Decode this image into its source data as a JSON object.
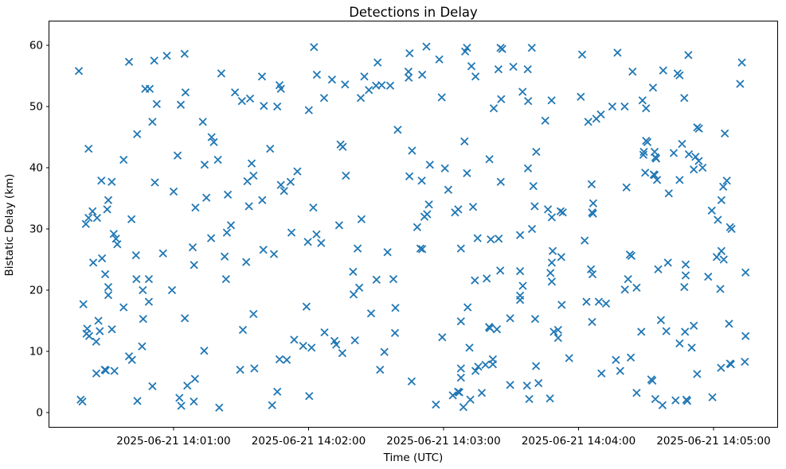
{
  "chart_data": {
    "type": "scatter",
    "title": "Detections in Delay",
    "xlabel": "Time (UTC)",
    "ylabel": "Bistatic Delay (km)",
    "marker": "x",
    "marker_color": "#1f77b4",
    "grid": false,
    "legend": null,
    "x_unit": "seconds after 2025-06-21 14:00:00 UTC",
    "xlim": [
      4.8,
      328.3
    ],
    "ylim": [
      -2.34,
      63.9
    ],
    "x_ticks": [
      60,
      120,
      180,
      240,
      300
    ],
    "x_tick_labels": [
      "2025-06-21 14:01:00",
      "2025-06-21 14:02:00",
      "2025-06-21 14:03:00",
      "2025-06-21 14:04:00",
      "2025-06-21 14:05:00"
    ],
    "y_ticks": [
      0,
      10,
      20,
      30,
      40,
      50,
      60
    ],
    "y_tick_labels": [
      "0",
      "10",
      "20",
      "30",
      "40",
      "50",
      "60"
    ],
    "points": [
      [
        17.9,
        55.8
      ],
      [
        40.2,
        57.3
      ],
      [
        51.4,
        57.5
      ],
      [
        57,
        58.3
      ],
      [
        64.9,
        58.6
      ],
      [
        81.2,
        55.4
      ],
      [
        47.4,
        52.9
      ],
      [
        49.4,
        52.9
      ],
      [
        65.3,
        52.3
      ],
      [
        52.5,
        50.4
      ],
      [
        63.2,
        50.3
      ],
      [
        50.6,
        47.5
      ],
      [
        73,
        47.5
      ],
      [
        43.8,
        45.5
      ],
      [
        76.9,
        45
      ],
      [
        77.9,
        44.2
      ],
      [
        22.2,
        43.1
      ],
      [
        61.8,
        42
      ],
      [
        122.4,
        59.7
      ],
      [
        164.9,
        58.7
      ],
      [
        150.7,
        57.2
      ],
      [
        164.4,
        55.7
      ],
      [
        164.5,
        54.7
      ],
      [
        99.3,
        54.9
      ],
      [
        123.7,
        55.2
      ],
      [
        130.4,
        54.4
      ],
      [
        136.2,
        53.6
      ],
      [
        144.8,
        54.9
      ],
      [
        107.1,
        53.5
      ],
      [
        107.7,
        52.9
      ],
      [
        87.3,
        52.3
      ],
      [
        90.4,
        50.9
      ],
      [
        94,
        51.3
      ],
      [
        100.1,
        50.1
      ],
      [
        106.1,
        50
      ],
      [
        126.9,
        51.4
      ],
      [
        143.2,
        51.4
      ],
      [
        146.8,
        52.7
      ],
      [
        150,
        53.4
      ],
      [
        152.5,
        53.5
      ],
      [
        156.3,
        53.4
      ],
      [
        120.1,
        49.4
      ],
      [
        159.6,
        46.2
      ],
      [
        102.9,
        43.1
      ],
      [
        134.2,
        43.8
      ],
      [
        135.2,
        43.4
      ],
      [
        172.4,
        59.8
      ],
      [
        178.1,
        57.7
      ],
      [
        190.4,
        59.6
      ],
      [
        189.6,
        59
      ],
      [
        205.3,
        59.6
      ],
      [
        206.1,
        59.4
      ],
      [
        219.2,
        59.6
      ],
      [
        241.6,
        58.5
      ],
      [
        192.4,
        56.6
      ],
      [
        204.4,
        56.1
      ],
      [
        211,
        56.5
      ],
      [
        217.4,
        56.1
      ],
      [
        170.5,
        55.2
      ],
      [
        194.2,
        54.9
      ],
      [
        179.2,
        51.5
      ],
      [
        215.1,
        52.4
      ],
      [
        205.6,
        51.2
      ],
      [
        202.3,
        49.7
      ],
      [
        217.6,
        50.9
      ],
      [
        228,
        51
      ],
      [
        241,
        51.6
      ],
      [
        225.2,
        47.7
      ],
      [
        244.3,
        47.5
      ],
      [
        189.3,
        44.3
      ],
      [
        166,
        42.8
      ],
      [
        221.2,
        42.6
      ],
      [
        200.4,
        41.4
      ],
      [
        257.3,
        58.8
      ],
      [
        288.8,
        58.4
      ],
      [
        312.6,
        57.2
      ],
      [
        264,
        55.7
      ],
      [
        277.6,
        55.9
      ],
      [
        284,
        55.4
      ],
      [
        284.9,
        55.1
      ],
      [
        311.8,
        53.7
      ],
      [
        273.1,
        53.1
      ],
      [
        287,
        51.4
      ],
      [
        268.4,
        51
      ],
      [
        270,
        49.7
      ],
      [
        255,
        50
      ],
      [
        260.5,
        50
      ],
      [
        249.9,
        48.7
      ],
      [
        247.9,
        48
      ],
      [
        292.7,
        46.6
      ],
      [
        293.5,
        46.4
      ],
      [
        305,
        45.6
      ],
      [
        270,
        44.4
      ],
      [
        270.6,
        44.2
      ],
      [
        286,
        43.9
      ],
      [
        269,
        42.6
      ],
      [
        273.8,
        42.6
      ],
      [
        282.3,
        42.4
      ],
      [
        289,
        42.2
      ],
      [
        292,
        41.8
      ],
      [
        293.4,
        41.1
      ],
      [
        37.8,
        41.3
      ],
      [
        73.8,
        40.5
      ],
      [
        79.7,
        41.3
      ],
      [
        27.9,
        37.9
      ],
      [
        32.5,
        37.7
      ],
      [
        51.7,
        37.6
      ],
      [
        60,
        36.1
      ],
      [
        74.6,
        35.1
      ],
      [
        84.1,
        35.6
      ],
      [
        69.7,
        33.5
      ],
      [
        31,
        34.7
      ],
      [
        30.5,
        33.2
      ],
      [
        24,
        32.9
      ],
      [
        26,
        31.8
      ],
      [
        22.2,
        31.8
      ],
      [
        21,
        30.8
      ],
      [
        41.3,
        31.6
      ],
      [
        33.4,
        29.2
      ],
      [
        34.4,
        28.4
      ],
      [
        35,
        27.5
      ],
      [
        83.7,
        29.4
      ],
      [
        85.5,
        30.6
      ],
      [
        76.7,
        28.5
      ],
      [
        68.5,
        27
      ],
      [
        69.1,
        24.1
      ],
      [
        43.3,
        25.7
      ],
      [
        55.3,
        26
      ],
      [
        24.3,
        24.5
      ],
      [
        28.2,
        25.2
      ],
      [
        82.7,
        25.5
      ],
      [
        83.3,
        21.8
      ],
      [
        29.6,
        22.6
      ],
      [
        31,
        20.5
      ],
      [
        43.5,
        21.8
      ],
      [
        49,
        21.8
      ],
      [
        94.7,
        40.7
      ],
      [
        95.5,
        38.7
      ],
      [
        92.8,
        37.8
      ],
      [
        115,
        39.4
      ],
      [
        136.6,
        38.7
      ],
      [
        164.8,
        38.6
      ],
      [
        107.7,
        37.2
      ],
      [
        109.1,
        36.2
      ],
      [
        112,
        37.7
      ],
      [
        99.4,
        34.7
      ],
      [
        93.5,
        33.7
      ],
      [
        122.1,
        33.5
      ],
      [
        112.4,
        29.4
      ],
      [
        119.7,
        27.9
      ],
      [
        123.5,
        29.1
      ],
      [
        125.6,
        27.7
      ],
      [
        133.6,
        30.6
      ],
      [
        143.5,
        31.6
      ],
      [
        99.9,
        26.6
      ],
      [
        104.6,
        25.9
      ],
      [
        92.3,
        24.6
      ],
      [
        141.8,
        26.8
      ],
      [
        155.1,
        26.2
      ],
      [
        139.8,
        23
      ],
      [
        150.2,
        21.7
      ],
      [
        157.7,
        21.8
      ],
      [
        142.5,
        20.4
      ],
      [
        173.9,
        40.5
      ],
      [
        180.6,
        39.9
      ],
      [
        190.4,
        39.1
      ],
      [
        217.5,
        39.9
      ],
      [
        170.3,
        37.9
      ],
      [
        205.4,
        37.7
      ],
      [
        219.9,
        37
      ],
      [
        182.1,
        36.4
      ],
      [
        173.5,
        34
      ],
      [
        185.1,
        32.7
      ],
      [
        186.5,
        33.2
      ],
      [
        193.1,
        33.6
      ],
      [
        171.5,
        32
      ],
      [
        172.7,
        32.4
      ],
      [
        168.3,
        30.3
      ],
      [
        220.5,
        33.7
      ],
      [
        226.4,
        33.2
      ],
      [
        228.1,
        31.9
      ],
      [
        232,
        32.9
      ],
      [
        233,
        32.7
      ],
      [
        219.3,
        30
      ],
      [
        214,
        29
      ],
      [
        195.1,
        28.5
      ],
      [
        201,
        28.3
      ],
      [
        204.5,
        28.4
      ],
      [
        242.7,
        28.1
      ],
      [
        169.7,
        26.8
      ],
      [
        170.5,
        26.7
      ],
      [
        187.7,
        26.8
      ],
      [
        228.5,
        26.4
      ],
      [
        232.3,
        25.4
      ],
      [
        228.1,
        24.5
      ],
      [
        205.2,
        23.2
      ],
      [
        214,
        23.1
      ],
      [
        193.9,
        21.6
      ],
      [
        199.2,
        21.9
      ],
      [
        215.2,
        20.7
      ],
      [
        227.5,
        22.8
      ],
      [
        228.1,
        21.4
      ],
      [
        245.5,
        23.4
      ],
      [
        246.2,
        22.6
      ],
      [
        245.8,
        37.3
      ],
      [
        268.8,
        42.1
      ],
      [
        274.1,
        41.7
      ],
      [
        274.5,
        41.5
      ],
      [
        291.2,
        39.7
      ],
      [
        295.1,
        40
      ],
      [
        269.6,
        39.2
      ],
      [
        273.4,
        38.9
      ],
      [
        273.8,
        38.8
      ],
      [
        274.9,
        38
      ],
      [
        284.9,
        38
      ],
      [
        261.3,
        36.8
      ],
      [
        280.1,
        35.8
      ],
      [
        305.9,
        37.9
      ],
      [
        304.3,
        36.9
      ],
      [
        303.5,
        34.7
      ],
      [
        246.5,
        34.2
      ],
      [
        246,
        32.7
      ],
      [
        246.4,
        32.5
      ],
      [
        299.2,
        33
      ],
      [
        301.9,
        31.5
      ],
      [
        307.3,
        30.3
      ],
      [
        308,
        30
      ],
      [
        262.8,
        25.8
      ],
      [
        263.5,
        25.6
      ],
      [
        303.5,
        26.4
      ],
      [
        301.4,
        25.4
      ],
      [
        304.5,
        25
      ],
      [
        279.7,
        24.5
      ],
      [
        275.4,
        23.4
      ],
      [
        287.6,
        24.2
      ],
      [
        287.6,
        22.4
      ],
      [
        297.6,
        22.2
      ],
      [
        314.2,
        22.9
      ],
      [
        262,
        21.8
      ],
      [
        31,
        19.2
      ],
      [
        46.3,
        20
      ],
      [
        59.3,
        20
      ],
      [
        49,
        18.1
      ],
      [
        19.9,
        17.7
      ],
      [
        37.8,
        17.2
      ],
      [
        26.6,
        15
      ],
      [
        46.5,
        15.3
      ],
      [
        65,
        15.4
      ],
      [
        21.6,
        13.7
      ],
      [
        27.2,
        13.3
      ],
      [
        32.6,
        13.6
      ],
      [
        21.3,
        12.9
      ],
      [
        22.5,
        12.5
      ],
      [
        25.6,
        11.6
      ],
      [
        46,
        10.8
      ],
      [
        40.2,
        9.2
      ],
      [
        41.5,
        8.6
      ],
      [
        73.6,
        10.1
      ],
      [
        25.7,
        6.4
      ],
      [
        29.4,
        7
      ],
      [
        29.9,
        6.9
      ],
      [
        33.7,
        6.8
      ],
      [
        50.6,
        4.3
      ],
      [
        69.5,
        5.5
      ],
      [
        66.1,
        4.4
      ],
      [
        18.7,
        2.1
      ],
      [
        19.5,
        1.8
      ],
      [
        43.9,
        1.9
      ],
      [
        62.6,
        2.4
      ],
      [
        63.4,
        1.1
      ],
      [
        69,
        1.8
      ],
      [
        80.3,
        0.8
      ],
      [
        140,
        19.3
      ],
      [
        119.1,
        17.3
      ],
      [
        95.5,
        16.1
      ],
      [
        147.8,
        16.2
      ],
      [
        158.6,
        17.1
      ],
      [
        90.8,
        13.5
      ],
      [
        127.1,
        13.1
      ],
      [
        158.4,
        13
      ],
      [
        113.6,
        11.9
      ],
      [
        117.6,
        10.9
      ],
      [
        121.3,
        10.6
      ],
      [
        131.5,
        11.7
      ],
      [
        132.3,
        11.1
      ],
      [
        135,
        9.7
      ],
      [
        140.6,
        11.8
      ],
      [
        153.7,
        9.9
      ],
      [
        107.1,
        8.7
      ],
      [
        110.3,
        8.6
      ],
      [
        89.6,
        7
      ],
      [
        95.9,
        7.2
      ],
      [
        151.8,
        7
      ],
      [
        106.1,
        3.4
      ],
      [
        120.3,
        2.7
      ],
      [
        103.8,
        1.2
      ],
      [
        214,
        19.1
      ],
      [
        214,
        18.4
      ],
      [
        232.5,
        17.6
      ],
      [
        243.5,
        18.1
      ],
      [
        190.7,
        17.2
      ],
      [
        187.7,
        14.9
      ],
      [
        209.6,
        15.4
      ],
      [
        220.7,
        15.3
      ],
      [
        200.2,
        14
      ],
      [
        200.6,
        13.8
      ],
      [
        203.7,
        13.6
      ],
      [
        179.4,
        12.3
      ],
      [
        229,
        13.2
      ],
      [
        230.9,
        13.5
      ],
      [
        230.9,
        12.2
      ],
      [
        191.5,
        10.6
      ],
      [
        201.9,
        8.7
      ],
      [
        201.9,
        7.9
      ],
      [
        195.4,
        7.5
      ],
      [
        198.6,
        7.8
      ],
      [
        194.2,
        6.8
      ],
      [
        187.7,
        7.2
      ],
      [
        187.7,
        5.7
      ],
      [
        221.1,
        7.6
      ],
      [
        235.8,
        8.9
      ],
      [
        165.8,
        5.1
      ],
      [
        209.6,
        4.5
      ],
      [
        217.1,
        4.4
      ],
      [
        222.2,
        4.8
      ],
      [
        186.4,
        3.4
      ],
      [
        187,
        3.3
      ],
      [
        184.1,
        2.8
      ],
      [
        197,
        3.2
      ],
      [
        191.9,
        2.1
      ],
      [
        188.8,
        0.9
      ],
      [
        176.6,
        1.3
      ],
      [
        218.1,
        2.2
      ],
      [
        227.3,
        2.3
      ],
      [
        260.6,
        20.1
      ],
      [
        265.8,
        20.4
      ],
      [
        287,
        20.5
      ],
      [
        303,
        20.2
      ],
      [
        249,
        18.1
      ],
      [
        252.2,
        17.8
      ],
      [
        246,
        14.8
      ],
      [
        276.6,
        15.1
      ],
      [
        267.9,
        13.2
      ],
      [
        279,
        13.3
      ],
      [
        287.3,
        13.2
      ],
      [
        291.2,
        14.2
      ],
      [
        306.9,
        14.5
      ],
      [
        284.9,
        11.3
      ],
      [
        290.3,
        10.6
      ],
      [
        314.2,
        12.5
      ],
      [
        256.6,
        8.6
      ],
      [
        263.2,
        9
      ],
      [
        250.2,
        6.4
      ],
      [
        258.5,
        6.8
      ],
      [
        292.7,
        6.3
      ],
      [
        303.3,
        7.3
      ],
      [
        307.3,
        8
      ],
      [
        307.7,
        7.9
      ],
      [
        313.9,
        8.3
      ],
      [
        272.3,
        5.4
      ],
      [
        272.8,
        5.2
      ],
      [
        265.8,
        3.2
      ],
      [
        274.1,
        2.2
      ],
      [
        277.3,
        1.2
      ],
      [
        283.1,
        2
      ],
      [
        287.9,
        2.1
      ],
      [
        288.3,
        1.9
      ],
      [
        299.5,
        2.5
      ]
    ]
  }
}
